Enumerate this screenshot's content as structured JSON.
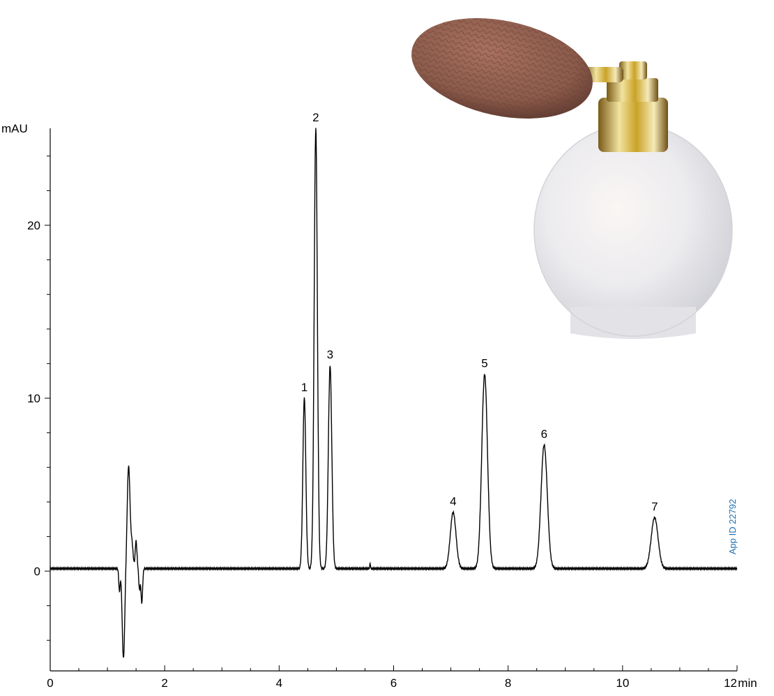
{
  "chart_data": {
    "type": "line",
    "x_unit_label": "min",
    "y_unit_label": "mAU",
    "xlim": [
      0,
      12
    ],
    "ylim": [
      -5,
      25.6
    ],
    "x_ticks": [
      "0",
      "2",
      "4",
      "6",
      "8",
      "10",
      "12"
    ],
    "y_ticks": [
      "0",
      "10",
      "20"
    ],
    "grid": false,
    "baseline": 0.15,
    "peaks": [
      {
        "label": "1",
        "rt": 4.44,
        "height": 10.0
      },
      {
        "label": "2",
        "rt": 4.64,
        "height": 25.6
      },
      {
        "label": "3",
        "rt": 4.89,
        "height": 11.9
      },
      {
        "label": "4",
        "rt": 7.04,
        "height": 3.4
      },
      {
        "label": "5",
        "rt": 7.59,
        "height": 11.4
      },
      {
        "label": "6",
        "rt": 8.63,
        "height": 7.3
      },
      {
        "label": "7",
        "rt": 10.56,
        "height": 3.1
      }
    ]
  },
  "app_id": "App ID 22792",
  "colors": {
    "trace": "#000000",
    "app_id": "#1f6fb2",
    "bottle_cap": "#c9a227",
    "bulb": "#8a5a4a",
    "glass": "#ecebee"
  }
}
